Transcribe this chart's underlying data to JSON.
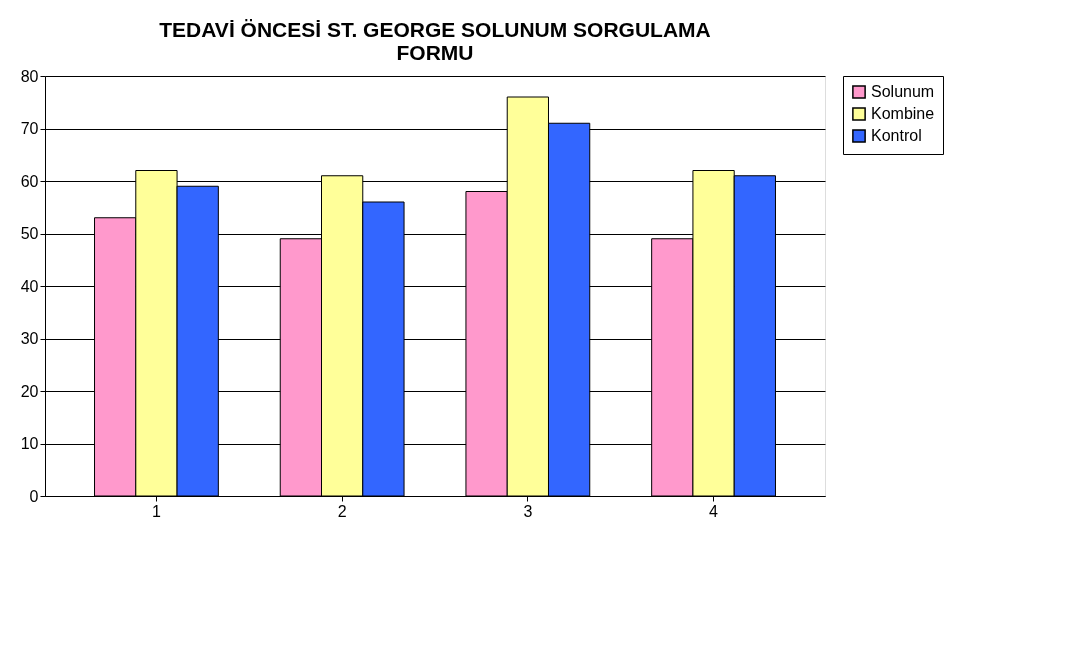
{
  "chart_data": {
    "type": "bar",
    "title": [
      "TEDAVİ ÖNCESİ ST. GEORGE SOLUNUM SORGULAMA",
      "FORMU"
    ],
    "categories": [
      "1",
      "2",
      "3",
      "4"
    ],
    "series": [
      {
        "name": "Solunum",
        "color": "#ff99cc",
        "values": [
          53,
          49,
          58,
          49
        ]
      },
      {
        "name": "Kombine",
        "color": "#ffff99",
        "values": [
          62,
          61,
          76,
          62
        ]
      },
      {
        "name": "Kontrol",
        "color": "#3366ff",
        "values": [
          59,
          56,
          71,
          61
        ]
      }
    ],
    "ylim": [
      0,
      80
    ],
    "yticks": [
      0,
      10,
      20,
      30,
      40,
      50,
      60,
      70,
      80
    ],
    "grid": "y",
    "legend": "right"
  }
}
